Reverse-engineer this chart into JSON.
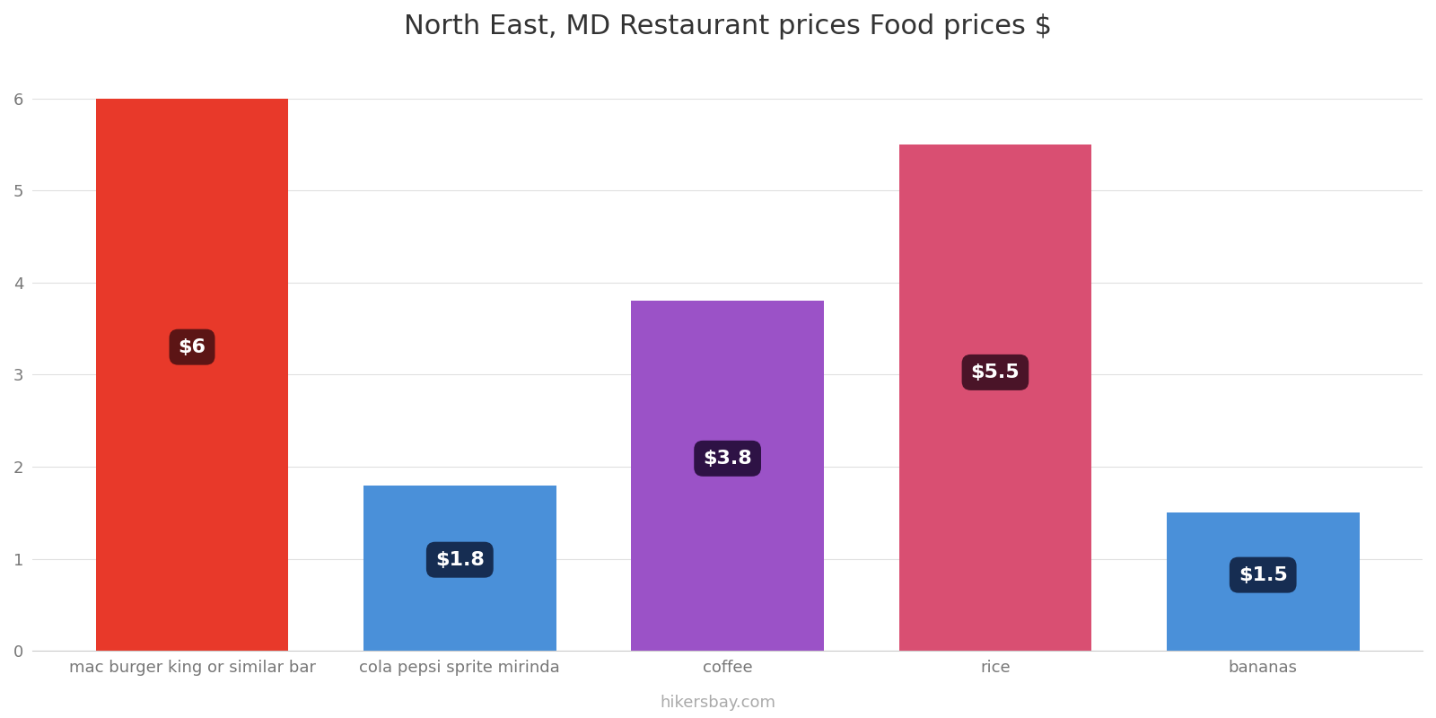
{
  "title": "North East, MD Restaurant prices Food prices $",
  "categories": [
    "mac burger king or similar bar",
    "cola pepsi sprite mirinda",
    "coffee",
    "rice",
    "bananas"
  ],
  "values": [
    6.0,
    1.8,
    3.8,
    5.5,
    1.5
  ],
  "bar_colors": [
    "#e8392a",
    "#4a90d9",
    "#9b52c7",
    "#d94f72",
    "#4a90d9"
  ],
  "label_texts": [
    "$6",
    "$1.8",
    "$3.8",
    "$5.5",
    "$1.5"
  ],
  "label_box_colors": [
    "#5c1515",
    "#162d52",
    "#2e1245",
    "#4a1428",
    "#162d52"
  ],
  "ylim": [
    0,
    6.4
  ],
  "yticks": [
    0,
    1,
    2,
    3,
    4,
    5,
    6
  ],
  "background_color": "#ffffff",
  "grid_color": "#e0e0e0",
  "title_fontsize": 22,
  "tick_fontsize": 13,
  "label_fontsize": 16,
  "watermark": "hikersbay.com",
  "bar_width": 0.72
}
